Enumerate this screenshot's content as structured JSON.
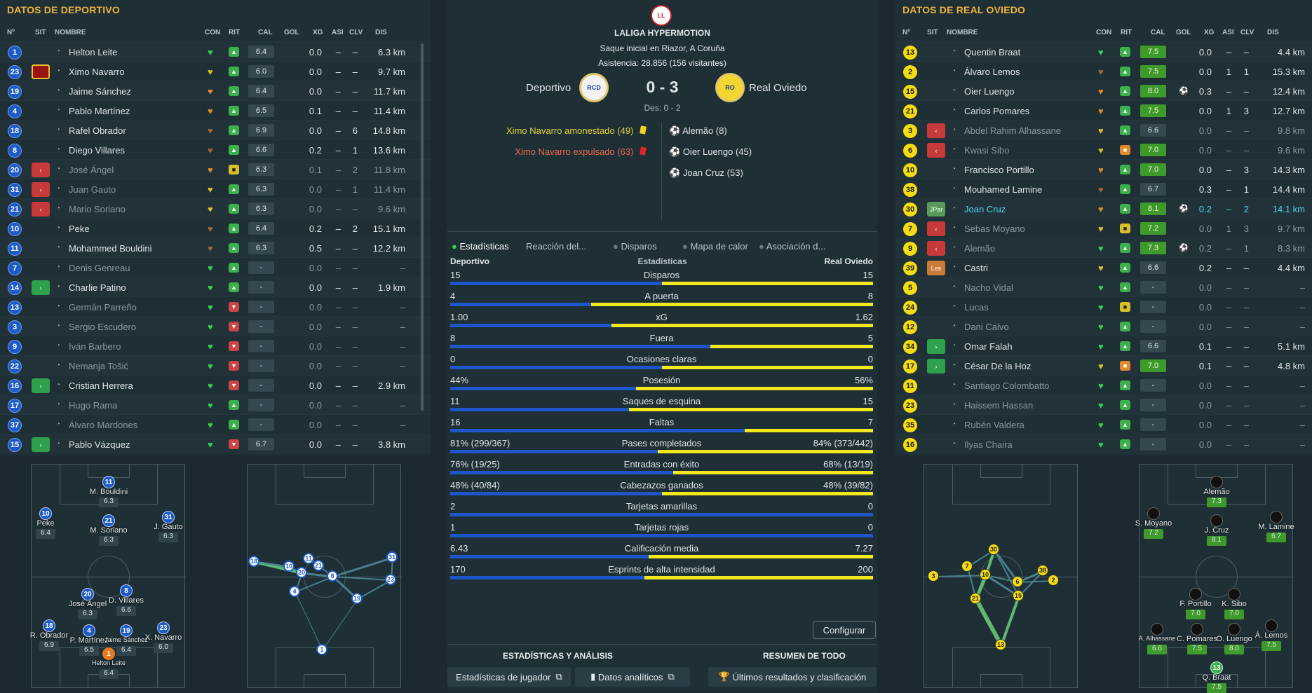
{
  "left": {
    "title": "DATOS DE DEPORTIVO",
    "headers": [
      "Nº",
      "SIT",
      "NOMBRE",
      "CON",
      "RIT",
      "CAL",
      "GOL",
      "XG",
      "ASI",
      "CLV",
      "DIS"
    ],
    "players": [
      {
        "n": "1",
        "sit": "",
        "name": "Helton Leite",
        "con": "g",
        "rit": "g",
        "cal": "6.4",
        "xg": "0.0",
        "asi": "–",
        "clv": "–",
        "dis": "6.3 km",
        "dim": false
      },
      {
        "n": "23",
        "sit": "red",
        "name": "Ximo Navarro",
        "con": "y",
        "rit": "g",
        "cal": "6.0",
        "xg": "0.0",
        "asi": "–",
        "clv": "–",
        "dis": "9.7 km",
        "dim": false
      },
      {
        "n": "19",
        "sit": "",
        "name": "Jaime Sánchez",
        "con": "o",
        "rit": "g",
        "cal": "6.4",
        "xg": "0.0",
        "asi": "–",
        "clv": "–",
        "dis": "11.7 km",
        "dim": false
      },
      {
        "n": "4",
        "sit": "",
        "name": "Pablo Martínez",
        "con": "o",
        "rit": "g",
        "cal": "6.5",
        "xg": "0.1",
        "asi": "–",
        "clv": "–",
        "dis": "11.4 km",
        "dim": false
      },
      {
        "n": "18",
        "sit": "",
        "name": "Rafel Obrador",
        "con": "b",
        "rit": "g",
        "cal": "6.9",
        "xg": "0.0",
        "asi": "–",
        "clv": "6",
        "dis": "14.8 km",
        "dim": false
      },
      {
        "n": "8",
        "sit": "",
        "name": "Diego Villares",
        "con": "b",
        "rit": "g",
        "cal": "6.6",
        "xg": "0.2",
        "asi": "–",
        "clv": "1",
        "dis": "13.6 km",
        "dim": false
      },
      {
        "n": "20",
        "sit": "out",
        "name": "José Ángel",
        "con": "o",
        "rit": "y",
        "cal": "6.3",
        "xg": "0.1",
        "asi": "–",
        "clv": "2",
        "dis": "11.8 km",
        "dim": true
      },
      {
        "n": "31",
        "sit": "out",
        "name": "Juan Gauto",
        "con": "y",
        "rit": "g",
        "cal": "6.3",
        "xg": "0.0",
        "asi": "–",
        "clv": "1",
        "dis": "11.4 km",
        "dim": true
      },
      {
        "n": "21",
        "sit": "out",
        "name": "Mario Soriano",
        "con": "y",
        "rit": "g",
        "cal": "6.3",
        "xg": "0.0",
        "asi": "–",
        "clv": "–",
        "dis": "9.6 km",
        "dim": true
      },
      {
        "n": "10",
        "sit": "",
        "name": "Peke",
        "con": "b",
        "rit": "g",
        "cal": "6.4",
        "xg": "0.2",
        "asi": "–",
        "clv": "2",
        "dis": "15.1 km",
        "dim": false
      },
      {
        "n": "11",
        "sit": "",
        "name": "Mohammed Bouldini",
        "con": "b",
        "rit": "g",
        "cal": "6.3",
        "xg": "0.5",
        "asi": "–",
        "clv": "–",
        "dis": "12.2 km",
        "dim": false
      },
      {
        "n": "7",
        "sit": "",
        "name": "Denis Genreau",
        "con": "g",
        "rit": "g",
        "cal": "-",
        "xg": "0.0",
        "asi": "–",
        "clv": "–",
        "dis": "–",
        "dim": true
      },
      {
        "n": "14",
        "sit": "in",
        "name": "Charlie Patino",
        "con": "g",
        "rit": "g",
        "cal": "-",
        "xg": "0.0",
        "asi": "–",
        "clv": "–",
        "dis": "1.9 km",
        "dim": false
      },
      {
        "n": "13",
        "sit": "",
        "name": "Germán Parreño",
        "con": "g",
        "rit": "r",
        "cal": "-",
        "xg": "0.0",
        "asi": "–",
        "clv": "–",
        "dis": "–",
        "dim": true
      },
      {
        "n": "3",
        "sit": "",
        "name": "Sergio Escudero",
        "con": "g",
        "rit": "r",
        "cal": "-",
        "xg": "0.0",
        "asi": "–",
        "clv": "–",
        "dis": "–",
        "dim": true
      },
      {
        "n": "9",
        "sit": "",
        "name": "Iván Barbero",
        "con": "g",
        "rit": "r",
        "cal": "-",
        "xg": "0.0",
        "asi": "–",
        "clv": "–",
        "dis": "–",
        "dim": true
      },
      {
        "n": "22",
        "sit": "",
        "name": "Nemanja Tošić",
        "con": "g",
        "rit": "r",
        "cal": "-",
        "xg": "0.0",
        "asi": "–",
        "clv": "–",
        "dis": "–",
        "dim": true
      },
      {
        "n": "16",
        "sit": "in",
        "name": "Cristian Herrera",
        "con": "g",
        "rit": "r",
        "cal": "-",
        "xg": "0.0",
        "asi": "–",
        "clv": "–",
        "dis": "2.9 km",
        "dim": false
      },
      {
        "n": "17",
        "sit": "",
        "name": "Hugo Rama",
        "con": "g",
        "rit": "g",
        "cal": "-",
        "xg": "0.0",
        "asi": "–",
        "clv": "–",
        "dis": "–",
        "dim": true
      },
      {
        "n": "37",
        "sit": "",
        "name": "Álvaro Mardones",
        "con": "g",
        "rit": "g",
        "cal": "-",
        "xg": "0.0",
        "asi": "–",
        "clv": "–",
        "dis": "–",
        "dim": true
      },
      {
        "n": "15",
        "sit": "in",
        "name": "Pablo Vázquez",
        "con": "g",
        "rit": "r",
        "cal": "6.7",
        "xg": "0.0",
        "asi": "–",
        "clv": "–",
        "dis": "3.8 km",
        "dim": false
      }
    ]
  },
  "right": {
    "title": "DATOS DE REAL OVIEDO",
    "headers": [
      "Nº",
      "SIT",
      "NOMBRE",
      "CON",
      "RIT",
      "CAL",
      "GOL",
      "XG",
      "ASI",
      "CLV",
      "DIS"
    ],
    "players": [
      {
        "n": "13",
        "sit": "",
        "name": "Quentin Braat",
        "con": "g",
        "rit": "g",
        "cal": "7.5",
        "gol": "",
        "xg": "0.0",
        "asi": "–",
        "clv": "–",
        "dis": "4.4 km",
        "dim": false,
        "hi": true
      },
      {
        "n": "2",
        "sit": "",
        "name": "Álvaro Lemos",
        "con": "b",
        "rit": "g",
        "cal": "7.5",
        "gol": "",
        "xg": "0.0",
        "asi": "1",
        "clv": "1",
        "dis": "15.3 km",
        "dim": false,
        "hi": true
      },
      {
        "n": "15",
        "sit": "",
        "name": "Oier Luengo",
        "con": "o",
        "rit": "g",
        "cal": "8.0",
        "gol": "⚽",
        "xg": "0.3",
        "asi": "–",
        "clv": "–",
        "dis": "12.4 km",
        "dim": false,
        "hi": true
      },
      {
        "n": "21",
        "sit": "",
        "name": "Carlos Pomares",
        "con": "o",
        "rit": "g",
        "cal": "7.5",
        "gol": "",
        "xg": "0.0",
        "asi": "1",
        "clv": "3",
        "dis": "12.7 km",
        "dim": false,
        "hi": true
      },
      {
        "n": "3",
        "sit": "out",
        "name": "Abdel Rahim Alhassane",
        "con": "y",
        "rit": "g",
        "cal": "6.6",
        "gol": "",
        "xg": "0.0",
        "asi": "–",
        "clv": "–",
        "dis": "9.8 km",
        "dim": true,
        "hi": false
      },
      {
        "n": "6",
        "sit": "out",
        "name": "Kwasi Sibo",
        "con": "y",
        "rit": "o",
        "cal": "7.0",
        "gol": "",
        "xg": "0.0",
        "asi": "–",
        "clv": "–",
        "dis": "9.6 km",
        "dim": true,
        "hi": true
      },
      {
        "n": "10",
        "sit": "",
        "name": "Francisco Portillo",
        "con": "o",
        "rit": "g",
        "cal": "7.0",
        "gol": "",
        "xg": "0.0",
        "asi": "–",
        "clv": "3",
        "dis": "14.3 km",
        "dim": false,
        "hi": true
      },
      {
        "n": "38",
        "sit": "",
        "name": "Mouhamed Lamine",
        "con": "b",
        "rit": "g",
        "cal": "6.7",
        "gol": "",
        "xg": "0.3",
        "asi": "–",
        "clv": "1",
        "dis": "14.4 km",
        "dim": false,
        "hi": false
      },
      {
        "n": "30",
        "sit": "jpar",
        "name": "Joan Cruz",
        "con": "o",
        "rit": "g",
        "cal": "8.1",
        "gol": "⚽",
        "xg": "0.2",
        "asi": "–",
        "clv": "2",
        "dis": "14.1 km",
        "dim": false,
        "hi": true,
        "cyan": true
      },
      {
        "n": "7",
        "sit": "out",
        "name": "Sebas Moyano",
        "con": "y",
        "rit": "y",
        "cal": "7.2",
        "gol": "",
        "xg": "0.0",
        "asi": "1",
        "clv": "3",
        "dis": "9.7 km",
        "dim": true,
        "hi": true
      },
      {
        "n": "9",
        "sit": "out",
        "name": "Alemão",
        "con": "g",
        "rit": "g",
        "cal": "7.3",
        "gol": "⚽",
        "xg": "0.2",
        "asi": "–",
        "clv": "1",
        "dis": "8.3 km",
        "dim": true,
        "hi": true
      },
      {
        "n": "39",
        "sit": "les",
        "name": "Castri",
        "con": "y",
        "rit": "g",
        "cal": "6.6",
        "gol": "",
        "xg": "0.2",
        "asi": "–",
        "clv": "–",
        "dis": "4.4 km",
        "dim": false,
        "hi": false
      },
      {
        "n": "5",
        "sit": "",
        "name": "Nacho Vidal",
        "con": "g",
        "rit": "g",
        "cal": "-",
        "gol": "",
        "xg": "0.0",
        "asi": "–",
        "clv": "–",
        "dis": "–",
        "dim": true,
        "hi": false
      },
      {
        "n": "24",
        "sit": "",
        "name": "Lucas",
        "con": "g",
        "rit": "y",
        "cal": "-",
        "gol": "",
        "xg": "0.0",
        "asi": "–",
        "clv": "–",
        "dis": "–",
        "dim": true,
        "hi": false
      },
      {
        "n": "12",
        "sit": "",
        "name": "Dani Calvo",
        "con": "g",
        "rit": "g",
        "cal": "-",
        "gol": "",
        "xg": "0.0",
        "asi": "–",
        "clv": "–",
        "dis": "–",
        "dim": true,
        "hi": false
      },
      {
        "n": "34",
        "sit": "in",
        "name": "Omar Falah",
        "con": "g",
        "rit": "g",
        "cal": "6.6",
        "gol": "",
        "xg": "0.1",
        "asi": "–",
        "clv": "–",
        "dis": "5.1 km",
        "dim": false,
        "hi": false
      },
      {
        "n": "17",
        "sit": "in",
        "name": "César De la Hoz",
        "con": "y",
        "rit": "o",
        "cal": "7.0",
        "gol": "",
        "xg": "0.1",
        "asi": "–",
        "clv": "–",
        "dis": "4.8 km",
        "dim": false,
        "hi": true
      },
      {
        "n": "11",
        "sit": "",
        "name": "Santiago Colombatto",
        "con": "g",
        "rit": "g",
        "cal": "-",
        "gol": "",
        "xg": "0.0",
        "asi": "–",
        "clv": "–",
        "dis": "–",
        "dim": true,
        "hi": false
      },
      {
        "n": "23",
        "sit": "",
        "name": "Haissem Hassan",
        "con": "g",
        "rit": "g",
        "cal": "-",
        "gol": "",
        "xg": "0.0",
        "asi": "–",
        "clv": "–",
        "dis": "–",
        "dim": true,
        "hi": false
      },
      {
        "n": "35",
        "sit": "",
        "name": "Rubén Valdera",
        "con": "g",
        "rit": "g",
        "cal": "-",
        "gol": "",
        "xg": "0.0",
        "asi": "–",
        "clv": "–",
        "dis": "–",
        "dim": true,
        "hi": false
      },
      {
        "n": "16",
        "sit": "",
        "name": "Ilyas Chaira",
        "con": "g",
        "rit": "g",
        "cal": "-",
        "gol": "",
        "xg": "0.0",
        "asi": "–",
        "clv": "–",
        "dis": "–",
        "dim": true,
        "hi": false
      }
    ]
  },
  "match": {
    "competition": "LALIGA HYPERMOTION",
    "venue": "Saque inicial en Riazor, A Coruña",
    "attendance": "Asistencia: 28.856 (156 visitantes)",
    "home": "Deportivo",
    "away": "Real Oviedo",
    "score": "0 - 3",
    "half": "Des: 0 - 2",
    "home_events": [
      "Ximo Navarro amonestado (49)",
      "Ximo Navarro expulsado (63)"
    ],
    "away_events": [
      "Alemão (8)",
      "Oier Luengo (45)",
      "Joan Cruz (53)"
    ]
  },
  "tabs": [
    "Estadísticas",
    "Reacción del...",
    "Disparos",
    "Mapa de calor",
    "Asociación d..."
  ],
  "stats_head": {
    "home": "Deportivo",
    "mid": "Estadísticas",
    "away": "Real Oviedo"
  },
  "stats": [
    {
      "label": "Disparos",
      "h": "15",
      "a": "15",
      "frac": 0.5
    },
    {
      "label": "A puerta",
      "h": "4",
      "a": "8",
      "frac": 0.333
    },
    {
      "label": "xG",
      "h": "1.00",
      "a": "1.62",
      "frac": 0.382
    },
    {
      "label": "Fuera",
      "h": "8",
      "a": "5",
      "frac": 0.615
    },
    {
      "label": "Ocasiones claras",
      "h": "0",
      "a": "0",
      "frac": 0.5
    },
    {
      "label": "Posesión",
      "h": "44%",
      "a": "56%",
      "frac": 0.44
    },
    {
      "label": "Saques de esquina",
      "h": "11",
      "a": "15",
      "frac": 0.423
    },
    {
      "label": "Faltas",
      "h": "16",
      "a": "7",
      "frac": 0.696
    },
    {
      "label": "Pases completados",
      "h": "81% (299/367)",
      "a": "84% (373/442)",
      "frac": 0.491
    },
    {
      "label": "Entradas con éxito",
      "h": "76% (19/25)",
      "a": "68% (13/19)",
      "frac": 0.528
    },
    {
      "label": "Cabezazos ganados",
      "h": "48% (40/84)",
      "a": "48% (39/82)",
      "frac": 0.5
    },
    {
      "label": "Tarjetas amarillas",
      "h": "2",
      "a": "0",
      "frac": 1.0
    },
    {
      "label": "Tarjetas rojas",
      "h": "1",
      "a": "0",
      "frac": 1.0
    },
    {
      "label": "Calificación media",
      "h": "6.43",
      "a": "7.27",
      "frac": 0.469
    },
    {
      "label": "Esprints de alta intensidad",
      "h": "170",
      "a": "200",
      "frac": 0.459
    }
  ],
  "buttons": {
    "configurar": "Configurar"
  },
  "footer": {
    "left_title": "ESTADÍSTICAS Y ANÁLISIS",
    "right_title": "RESUMEN DE TODO",
    "b1": "Estadísticas de jugador",
    "b2": "Datos analíticos",
    "b3": "Últimos resultados y clasificación"
  },
  "home_form": [
    {
      "n": "11",
      "name": "M. Bouldini",
      "r": "6.3"
    },
    {
      "n": "10",
      "name": "Peke",
      "r": "6.4"
    },
    {
      "n": "21",
      "name": "M. Soriano",
      "r": "6.3"
    },
    {
      "n": "31",
      "name": "J. Gauto",
      "r": "6.3"
    },
    {
      "n": "20",
      "name": "José Ángel",
      "r": "6.3"
    },
    {
      "n": "8",
      "name": "D. Villares",
      "r": "6.6"
    },
    {
      "n": "18",
      "name": "R. Obrador",
      "r": "6.9"
    },
    {
      "n": "4",
      "name": "P. Martínez",
      "r": "6.5"
    },
    {
      "n": "19",
      "name": "Jaime Sánchez",
      "r": "6.4"
    },
    {
      "n": "23",
      "name": "X. Navarro",
      "r": "6.0"
    },
    {
      "n": "1",
      "name": "Helton Leite",
      "r": "6.4"
    }
  ],
  "home_net": [
    "18",
    "10",
    "11",
    "20",
    "21",
    "8",
    "4",
    "19",
    "31",
    "23",
    "1"
  ],
  "away_net": [
    "30",
    "7",
    "3",
    "10",
    "38",
    "21",
    "6",
    "2",
    "15",
    "13"
  ],
  "away_form": [
    {
      "name": "Alemão",
      "r": "7.3"
    },
    {
      "name": "S. Moyano",
      "r": "7.2"
    },
    {
      "name": "J. Cruz",
      "r": "8.1"
    },
    {
      "name": "M. Lamine",
      "r": "6.7"
    },
    {
      "name": "F. Portillo",
      "r": "7.0"
    },
    {
      "name": "K. Sibo",
      "r": "7.0"
    },
    {
      "name": "A. Alhassane",
      "r": "6.6"
    },
    {
      "name": "C. Pomares",
      "r": "7.5"
    },
    {
      "name": "O. Luengo",
      "r": "8.0"
    },
    {
      "name": "Á. Lemos",
      "r": "7.5"
    },
    {
      "n": "13",
      "name": "Q. Braat",
      "r": "7.5"
    }
  ],
  "colors": {
    "accent": "#f0b43a",
    "home_bar": "#1e55c8",
    "away_bar": "#f2e81c"
  }
}
